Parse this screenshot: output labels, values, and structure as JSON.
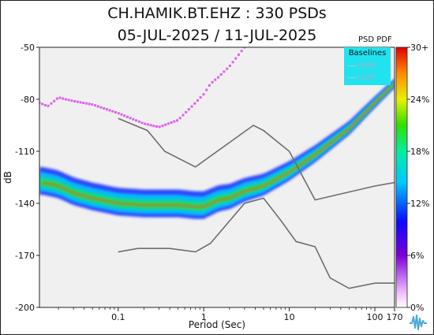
{
  "header": {
    "title_line1": "CH.HAMIK.BT.EHZ : 330 PSDs",
    "title_line2": "05-JUL-2025 / 11-JUL-2025"
  },
  "colorbar": {
    "label": "PSD PDF",
    "ticks": [
      "30+",
      "24%",
      "18%",
      "12%",
      "6%",
      "0%"
    ]
  },
  "legend": {
    "title": "Baselines",
    "items": [
      "HNM",
      "LNM"
    ],
    "bg_color": "#21e3ef"
  },
  "chart_data": {
    "type": "heatmap",
    "xlabel": "Period (Sec)",
    "ylabel": "dB",
    "xscale": "log",
    "xlim": [
      0.012,
      170
    ],
    "ylim": [
      -200,
      -50
    ],
    "x_ticks": [
      "0.1",
      "1",
      "10",
      "100",
      "170"
    ],
    "y_ticks": [
      "-50",
      "-80",
      "-110",
      "-140",
      "-170",
      "-200"
    ],
    "colormap_range_percent": [
      0,
      30
    ],
    "legend_placement": "top-right",
    "series": [
      {
        "name": "HNM",
        "x": [
          0.1,
          0.22,
          0.35,
          0.8,
          3.8,
          5,
          10,
          20,
          100,
          170
        ],
        "y": [
          -91,
          -98,
          -110,
          -119,
          -95,
          -98,
          -110,
          -138,
          -130,
          -128
        ]
      },
      {
        "name": "LNM",
        "x": [
          0.1,
          0.17,
          0.4,
          0.8,
          1.2,
          3,
          5,
          8,
          12,
          20,
          30,
          50,
          100,
          170
        ],
        "y": [
          -168,
          -166,
          -166,
          -168,
          -163,
          -140,
          -137,
          -150,
          -162,
          -165,
          -183,
          -189,
          -186,
          -186
        ]
      },
      {
        "name": "PSD mode",
        "x": [
          0.013,
          0.02,
          0.03,
          0.05,
          0.1,
          0.2,
          0.35,
          0.5,
          0.8,
          1,
          1.5,
          2,
          3,
          5,
          10,
          20,
          50,
          100,
          170
        ],
        "y": [
          -128,
          -130,
          -134,
          -137,
          -140,
          -141,
          -141,
          -141,
          -142,
          -142,
          -138,
          -137,
          -133,
          -130,
          -122,
          -112,
          -97,
          -82,
          -71
        ]
      },
      {
        "name": "Maximum PSD",
        "x": [
          0.012,
          0.015,
          0.02,
          0.03,
          0.05,
          0.1,
          0.2,
          0.3,
          0.5,
          0.8,
          1,
          1.2,
          1.5,
          2,
          3
        ],
        "y": [
          -82,
          -84,
          -79,
          -81,
          -83,
          -88,
          -94,
          -96,
          -92,
          -82,
          -77,
          -71,
          -67,
          -61,
          -50
        ]
      }
    ]
  }
}
